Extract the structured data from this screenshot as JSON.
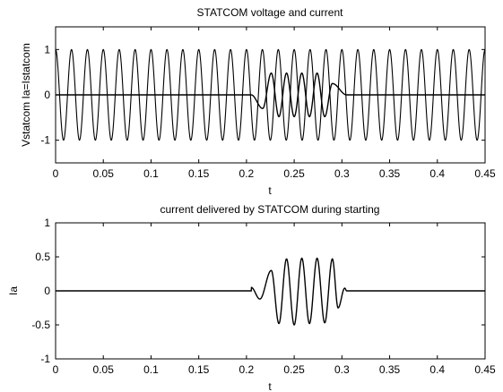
{
  "chart_data": [
    {
      "type": "line",
      "title": "STATCOM voltage and current",
      "xlabel": "t",
      "ylabel": "Vstatcom Ia=Istatcom",
      "xlim": [
        0,
        0.45
      ],
      "ylim": [
        -1.5,
        1.5
      ],
      "xticks": [
        "0",
        "0.05",
        "0.1",
        "0.15",
        "0.2",
        "0.25",
        "0.3",
        "0.35",
        "0.4",
        "0.45"
      ],
      "yticks": [
        "-1",
        "0",
        "1"
      ],
      "grid": false,
      "series": [
        {
          "kind": "sine",
          "amplitude": 1.0,
          "frequency_hz": 60,
          "x_range": [
            0,
            0.45
          ]
        },
        {
          "kind": "burst",
          "baseline": 0,
          "burst_x_range": [
            0.205,
            0.305
          ],
          "burst_peaks": [
            {
              "x": 0.217,
              "y": -0.3
            },
            {
              "x": 0.226,
              "y": 0.48
            },
            {
              "x": 0.234,
              "y": -0.48
            },
            {
              "x": 0.242,
              "y": 0.48
            },
            {
              "x": 0.25,
              "y": -0.48
            },
            {
              "x": 0.258,
              "y": 0.48
            },
            {
              "x": 0.266,
              "y": -0.48
            },
            {
              "x": 0.274,
              "y": 0.48
            },
            {
              "x": 0.282,
              "y": -0.48
            },
            {
              "x": 0.29,
              "y": 0.25
            }
          ]
        }
      ]
    },
    {
      "type": "line",
      "title": "current delivered by STATCOM during starting",
      "xlabel": "t",
      "ylabel": "Ia",
      "xlim": [
        0,
        0.45
      ],
      "ylim": [
        -1,
        1
      ],
      "xticks": [
        "0",
        "0.05",
        "0.1",
        "0.15",
        "0.2",
        "0.25",
        "0.3",
        "0.35",
        "0.4",
        "0.45"
      ],
      "yticks": [
        "-1",
        "-0.5",
        "0",
        "0.5",
        "1"
      ],
      "grid": false,
      "series": [
        {
          "kind": "burst",
          "baseline": 0,
          "burst_x_range": [
            0.205,
            0.305
          ],
          "burst_peaks": [
            {
              "x": 0.205,
              "y": 0.05
            },
            {
              "x": 0.214,
              "y": -0.12
            },
            {
              "x": 0.226,
              "y": 0.3
            },
            {
              "x": 0.234,
              "y": -0.48
            },
            {
              "x": 0.242,
              "y": 0.47
            },
            {
              "x": 0.25,
              "y": -0.5
            },
            {
              "x": 0.258,
              "y": 0.48
            },
            {
              "x": 0.266,
              "y": -0.48
            },
            {
              "x": 0.274,
              "y": 0.48
            },
            {
              "x": 0.282,
              "y": -0.47
            },
            {
              "x": 0.29,
              "y": 0.47
            },
            {
              "x": 0.296,
              "y": -0.25
            },
            {
              "x": 0.303,
              "y": 0.04
            }
          ]
        }
      ]
    }
  ]
}
